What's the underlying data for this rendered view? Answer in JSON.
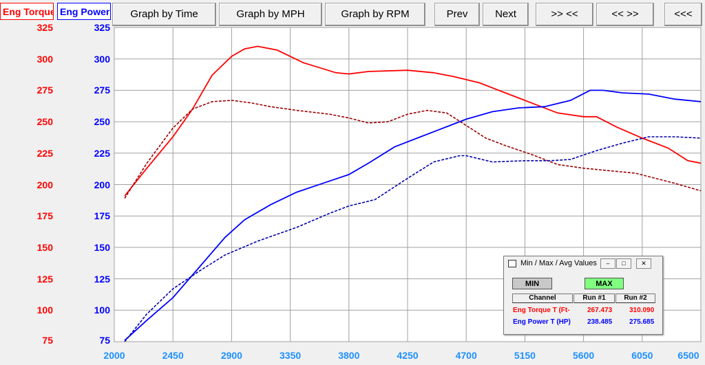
{
  "legend": {
    "torque_label": "Eng Torque",
    "power_label": "Eng Power"
  },
  "toolbar": {
    "graph_by_time": "Graph by Time",
    "graph_by_mph": "Graph by MPH",
    "graph_by_rpm": "Graph by RPM",
    "prev": "Prev",
    "next": "Next",
    "zoom_in": ">> <<",
    "zoom_out": "<< >>",
    "back": "<<<"
  },
  "colors": {
    "torque": "#ff0000",
    "power": "#0000ff",
    "x_tick": "#1e90ff",
    "grid": "#a0a0a0",
    "plot_bg": "#ffffff",
    "max_button": "#80ff80"
  },
  "chart_data": {
    "type": "line",
    "x_axis": {
      "ticks": [
        2000,
        2450,
        2900,
        3350,
        3800,
        4250,
        4700,
        5150,
        5600,
        6050,
        6500
      ],
      "range": [
        2000,
        6500
      ]
    },
    "y_left": {
      "ticks": [
        75,
        100,
        125,
        150,
        175,
        200,
        225,
        250,
        275,
        300,
        325
      ],
      "range": [
        75,
        325
      ],
      "color": "#ff0000"
    },
    "y_right": {
      "ticks": [
        75,
        100,
        125,
        150,
        175,
        200,
        225,
        250,
        275,
        300,
        325
      ],
      "range": [
        75,
        325
      ],
      "color": "#0000ff"
    },
    "grid": true,
    "series": [
      {
        "name": "Eng Torque",
        "run": "solid",
        "color": "#ff0000",
        "x": [
          2080,
          2250,
          2450,
          2600,
          2750,
          2900,
          3000,
          3100,
          3250,
          3450,
          3700,
          3800,
          3950,
          4250,
          4450,
          4600,
          4800,
          5000,
          5200,
          5400,
          5600,
          5700,
          5850,
          6050,
          6250,
          6400,
          6500
        ],
        "y": [
          191,
          213,
          238,
          260,
          287,
          302,
          308,
          310,
          307,
          297,
          289,
          288,
          290,
          291,
          289,
          286,
          281,
          273,
          265,
          257,
          254,
          254,
          246,
          237,
          229,
          219,
          217
        ]
      },
      {
        "name": "Eng Torque",
        "run": "dashed",
        "color": "#990000",
        "x": [
          2080,
          2250,
          2450,
          2600,
          2750,
          2900,
          3050,
          3200,
          3400,
          3650,
          3800,
          3950,
          4100,
          4250,
          4400,
          4550,
          4700,
          4850,
          5000,
          5200,
          5400,
          5600,
          5800,
          6000,
          6150,
          6300,
          6500
        ],
        "y": [
          189,
          217,
          245,
          260,
          266,
          267,
          265,
          262,
          259,
          256,
          253,
          249,
          250,
          256,
          259,
          257,
          247,
          237,
          231,
          224,
          216,
          213,
          211,
          209,
          205,
          201,
          195
        ]
      },
      {
        "name": "Eng Power",
        "run": "solid",
        "color": "#0000ff",
        "x": [
          2080,
          2250,
          2450,
          2650,
          2850,
          3000,
          3200,
          3400,
          3600,
          3800,
          3950,
          4150,
          4350,
          4550,
          4700,
          4900,
          5100,
          5300,
          5500,
          5650,
          5750,
          5900,
          6100,
          6300,
          6500
        ],
        "y": [
          76,
          92,
          110,
          134,
          158,
          172,
          184,
          194,
          201,
          208,
          217,
          230,
          238,
          246,
          252,
          258,
          261,
          262,
          267,
          275,
          275,
          273,
          272,
          268,
          266
        ]
      },
      {
        "name": "Eng Power",
        "run": "dashed",
        "color": "#0000aa",
        "x": [
          2080,
          2250,
          2450,
          2650,
          2850,
          3100,
          3400,
          3650,
          3800,
          4000,
          4250,
          4450,
          4650,
          4700,
          4900,
          5150,
          5350,
          5500,
          5700,
          5900,
          6100,
          6300,
          6500
        ],
        "y": [
          75,
          97,
          117,
          131,
          144,
          155,
          166,
          177,
          183,
          188,
          205,
          218,
          223,
          223,
          218,
          219,
          219,
          220,
          227,
          233,
          238,
          238,
          237
        ]
      }
    ]
  },
  "popup": {
    "title": "Min / Max / Avg Values",
    "min_button": "MIN",
    "max_button": "MAX",
    "col_channel": "Channel",
    "col_run1": "Run #1",
    "col_run2": "Run #2",
    "rows": [
      {
        "channel": "Eng Torque T (Ft-",
        "run1": "267.473",
        "run2": "310.090",
        "color": "#ff0000"
      },
      {
        "channel": "Eng Power T (HP)",
        "run1": "238.485",
        "run2": "275.685",
        "color": "#0000ff"
      }
    ]
  }
}
